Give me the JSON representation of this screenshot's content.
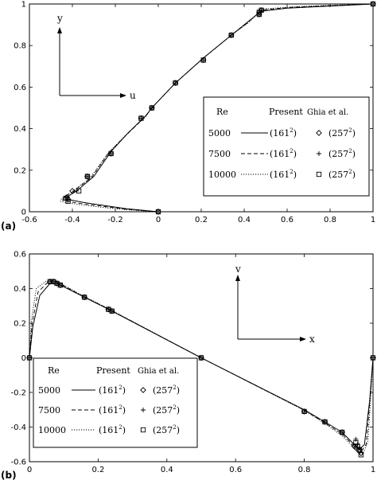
{
  "chart_data": [
    {
      "panel_label": "(a)",
      "type": "line",
      "xlim": [
        -0.6,
        1
      ],
      "ylim": [
        0,
        1
      ],
      "xticks": [
        "-0.6",
        "-0.4",
        "-0.2",
        "0",
        "0.2",
        "0.4",
        "0.6",
        "0.8",
        "1"
      ],
      "yticks": [
        "0",
        "0.2",
        "0.4",
        "0.6",
        "0.8",
        "1"
      ],
      "xtick_values": [
        -0.6,
        -0.4,
        -0.2,
        0,
        0.2,
        0.4,
        0.6,
        0.8,
        1
      ],
      "ytick_values": [
        0,
        0.2,
        0.4,
        0.6,
        0.8,
        1
      ],
      "inset_axes": {
        "vertical": "y",
        "horizontal": "u"
      },
      "legend": {
        "placement": "bottom-right",
        "header": [
          "Re",
          "Present",
          "Ghia et al."
        ],
        "rows": [
          {
            "re": "5000",
            "present": "(161",
            "present_exp": "2",
            "ghia": "(257",
            "ghia_exp": "2",
            "marker": "diamond",
            "dash": "solid"
          },
          {
            "re": "7500",
            "present": "(161",
            "present_exp": "2",
            "ghia": "(257",
            "ghia_exp": "2",
            "marker": "plus",
            "dash": "dashed"
          },
          {
            "re": "10000",
            "present": "(161",
            "present_exp": "2",
            "ghia": "(257",
            "ghia_exp": "2",
            "marker": "square",
            "dash": "dotted"
          }
        ]
      },
      "series": [
        {
          "dash": "solid",
          "points": [
            [
              0,
              0
            ],
            [
              -0.05,
              0.005
            ],
            [
              -0.15,
              0.015
            ],
            [
              -0.25,
              0.03
            ],
            [
              -0.35,
              0.045
            ],
            [
              -0.4,
              0.055
            ],
            [
              -0.43,
              0.06
            ],
            [
              -0.42,
              0.075
            ],
            [
              -0.38,
              0.1
            ],
            [
              -0.3,
              0.17
            ],
            [
              -0.22,
              0.29
            ],
            [
              -0.14,
              0.38
            ],
            [
              -0.06,
              0.46
            ],
            [
              -0.03,
              0.5
            ],
            [
              0.08,
              0.62
            ],
            [
              0.21,
              0.74
            ],
            [
              0.34,
              0.85
            ],
            [
              0.4,
              0.9
            ],
            [
              0.46,
              0.95
            ],
            [
              0.48,
              0.965
            ],
            [
              0.6,
              0.98
            ],
            [
              0.8,
              0.99
            ],
            [
              1.0,
              1.0
            ]
          ]
        },
        {
          "dash": "dashed",
          "points": [
            [
              0,
              0
            ],
            [
              -0.05,
              0.004
            ],
            [
              -0.15,
              0.012
            ],
            [
              -0.25,
              0.025
            ],
            [
              -0.35,
              0.038
            ],
            [
              -0.41,
              0.048
            ],
            [
              -0.445,
              0.055
            ],
            [
              -0.44,
              0.07
            ],
            [
              -0.4,
              0.095
            ],
            [
              -0.31,
              0.165
            ],
            [
              -0.23,
              0.285
            ],
            [
              -0.14,
              0.378
            ],
            [
              -0.06,
              0.458
            ],
            [
              -0.03,
              0.5
            ],
            [
              0.08,
              0.62
            ],
            [
              0.21,
              0.74
            ],
            [
              0.34,
              0.85
            ],
            [
              0.41,
              0.905
            ],
            [
              0.465,
              0.955
            ],
            [
              0.49,
              0.972
            ],
            [
              0.62,
              0.984
            ],
            [
              0.8,
              0.992
            ],
            [
              1.0,
              1.0
            ]
          ]
        },
        {
          "dash": "dotted",
          "points": [
            [
              0,
              0
            ],
            [
              -0.05,
              0.003
            ],
            [
              -0.15,
              0.01
            ],
            [
              -0.25,
              0.02
            ],
            [
              -0.35,
              0.032
            ],
            [
              -0.42,
              0.042
            ],
            [
              -0.455,
              0.05
            ],
            [
              -0.45,
              0.065
            ],
            [
              -0.41,
              0.09
            ],
            [
              -0.32,
              0.16
            ],
            [
              -0.235,
              0.28
            ],
            [
              -0.145,
              0.376
            ],
            [
              -0.06,
              0.456
            ],
            [
              -0.03,
              0.5
            ],
            [
              0.08,
              0.62
            ],
            [
              0.21,
              0.74
            ],
            [
              0.34,
              0.85
            ],
            [
              0.42,
              0.91
            ],
            [
              0.47,
              0.96
            ],
            [
              0.5,
              0.977
            ],
            [
              0.64,
              0.987
            ],
            [
              0.8,
              0.994
            ],
            [
              1.0,
              1.0
            ]
          ]
        }
      ],
      "markers": [
        {
          "marker": "diamond",
          "points": [
            [
              0,
              0
            ],
            [
              -0.42,
              0.06
            ],
            [
              -0.425,
              0.07
            ],
            [
              -0.4,
              0.1
            ],
            [
              -0.33,
              0.17
            ],
            [
              -0.22,
              0.28
            ],
            [
              -0.08,
              0.45
            ],
            [
              -0.03,
              0.5
            ],
            [
              0.08,
              0.62
            ],
            [
              0.21,
              0.73
            ],
            [
              0.34,
              0.85
            ],
            [
              0.47,
              0.95
            ],
            [
              0.47,
              0.96
            ],
            [
              0.48,
              0.97
            ],
            [
              1.0,
              1.0
            ]
          ]
        },
        {
          "marker": "plus",
          "points": [
            [
              0,
              0
            ],
            [
              -0.425,
              0.06
            ],
            [
              -0.43,
              0.07
            ],
            [
              -0.38,
              0.1
            ],
            [
              -0.33,
              0.17
            ],
            [
              -0.22,
              0.28
            ],
            [
              -0.08,
              0.45
            ],
            [
              -0.03,
              0.5
            ],
            [
              0.08,
              0.62
            ],
            [
              0.21,
              0.73
            ],
            [
              0.34,
              0.85
            ],
            [
              0.47,
              0.95
            ],
            [
              0.47,
              0.96
            ],
            [
              0.48,
              0.97
            ],
            [
              1.0,
              1.0
            ]
          ]
        },
        {
          "marker": "square",
          "points": [
            [
              0,
              0
            ],
            [
              -0.42,
              0.05
            ],
            [
              -0.43,
              0.065
            ],
            [
              -0.37,
              0.1
            ],
            [
              -0.33,
              0.17
            ],
            [
              -0.22,
              0.28
            ],
            [
              -0.08,
              0.45
            ],
            [
              -0.03,
              0.5
            ],
            [
              0.08,
              0.62
            ],
            [
              0.21,
              0.73
            ],
            [
              0.34,
              0.85
            ],
            [
              0.47,
              0.95
            ],
            [
              0.47,
              0.96
            ],
            [
              0.48,
              0.97
            ],
            [
              1.0,
              1.0
            ]
          ]
        }
      ]
    },
    {
      "panel_label": "(b)",
      "type": "line",
      "xlim": [
        0,
        1
      ],
      "ylim": [
        -0.6,
        0.6
      ],
      "xticks": [
        "0",
        "0.2",
        "0.4",
        "0.6",
        "0.8",
        "1"
      ],
      "yticks": [
        "-0.6",
        "-0.4",
        "-0.2",
        "0",
        "0.2",
        "0.4",
        "0.6"
      ],
      "xtick_values": [
        0,
        0.2,
        0.4,
        0.6,
        0.8,
        1
      ],
      "ytick_values": [
        -0.6,
        -0.4,
        -0.2,
        0,
        0.2,
        0.4,
        0.6
      ],
      "inset_axes": {
        "vertical": "v",
        "horizontal": "x"
      },
      "legend": {
        "placement": "bottom-left",
        "header": [
          "Re",
          "Present",
          "Ghia et al."
        ],
        "rows": [
          {
            "re": "5000",
            "present": "(161",
            "present_exp": "2",
            "ghia": "(257",
            "ghia_exp": "2",
            "marker": "diamond",
            "dash": "solid"
          },
          {
            "re": "7500",
            "present": "(161",
            "present_exp": "2",
            "ghia": "(257",
            "ghia_exp": "2",
            "marker": "plus",
            "dash": "dashed"
          },
          {
            "re": "10000",
            "present": "(161",
            "present_exp": "2",
            "ghia": "(257",
            "ghia_exp": "2",
            "marker": "square",
            "dash": "dotted"
          }
        ]
      },
      "series": [
        {
          "dash": "solid",
          "points": [
            [
              0,
              0
            ],
            [
              0.01,
              0.18
            ],
            [
              0.03,
              0.36
            ],
            [
              0.06,
              0.43
            ],
            [
              0.08,
              0.43
            ],
            [
              0.1,
              0.41
            ],
            [
              0.15,
              0.36
            ],
            [
              0.23,
              0.28
            ],
            [
              0.5,
              0.0
            ],
            [
              0.8,
              -0.3
            ],
            [
              0.86,
              -0.37
            ],
            [
              0.91,
              -0.43
            ],
            [
              0.94,
              -0.49
            ],
            [
              0.96,
              -0.53
            ],
            [
              0.975,
              -0.5
            ],
            [
              0.99,
              -0.25
            ],
            [
              1.0,
              0
            ]
          ]
        },
        {
          "dash": "dashed",
          "points": [
            [
              0,
              0
            ],
            [
              0.008,
              0.2
            ],
            [
              0.025,
              0.38
            ],
            [
              0.055,
              0.44
            ],
            [
              0.075,
              0.44
            ],
            [
              0.1,
              0.415
            ],
            [
              0.15,
              0.362
            ],
            [
              0.23,
              0.282
            ],
            [
              0.5,
              0.0
            ],
            [
              0.8,
              -0.302
            ],
            [
              0.86,
              -0.375
            ],
            [
              0.91,
              -0.44
            ],
            [
              0.945,
              -0.51
            ],
            [
              0.965,
              -0.54
            ],
            [
              0.98,
              -0.5
            ],
            [
              0.992,
              -0.22
            ],
            [
              1.0,
              0
            ]
          ]
        },
        {
          "dash": "dotted",
          "points": [
            [
              0,
              0
            ],
            [
              0.006,
              0.22
            ],
            [
              0.02,
              0.4
            ],
            [
              0.05,
              0.445
            ],
            [
              0.07,
              0.445
            ],
            [
              0.1,
              0.42
            ],
            [
              0.15,
              0.364
            ],
            [
              0.23,
              0.284
            ],
            [
              0.5,
              0.0
            ],
            [
              0.8,
              -0.304
            ],
            [
              0.86,
              -0.38
            ],
            [
              0.91,
              -0.45
            ],
            [
              0.95,
              -0.53
            ],
            [
              0.97,
              -0.555
            ],
            [
              0.985,
              -0.49
            ],
            [
              0.994,
              -0.2
            ],
            [
              1.0,
              0
            ]
          ]
        }
      ],
      "markers": [
        {
          "marker": "diamond",
          "points": [
            [
              0,
              0
            ],
            [
              0.06,
              0.44
            ],
            [
              0.07,
              0.44
            ],
            [
              0.08,
              0.43
            ],
            [
              0.09,
              0.42
            ],
            [
              0.16,
              0.35
            ],
            [
              0.23,
              0.28
            ],
            [
              0.24,
              0.27
            ],
            [
              0.5,
              0.0
            ],
            [
              0.8,
              -0.31
            ],
            [
              0.86,
              -0.37
            ],
            [
              0.91,
              -0.43
            ],
            [
              0.945,
              -0.51
            ],
            [
              0.95,
              -0.52
            ],
            [
              0.96,
              -0.54
            ],
            [
              0.965,
              -0.55
            ],
            [
              1.0,
              0
            ]
          ]
        },
        {
          "marker": "plus",
          "points": [
            [
              0,
              0
            ],
            [
              0.06,
              0.44
            ],
            [
              0.07,
              0.44
            ],
            [
              0.08,
              0.43
            ],
            [
              0.09,
              0.42
            ],
            [
              0.16,
              0.35
            ],
            [
              0.23,
              0.28
            ],
            [
              0.24,
              0.27
            ],
            [
              0.5,
              0.0
            ],
            [
              0.8,
              -0.31
            ],
            [
              0.86,
              -0.37
            ],
            [
              0.91,
              -0.43
            ],
            [
              0.95,
              -0.47
            ],
            [
              0.955,
              -0.5
            ],
            [
              0.96,
              -0.52
            ],
            [
              0.965,
              -0.53
            ],
            [
              1.0,
              0
            ]
          ]
        },
        {
          "marker": "square",
          "points": [
            [
              0,
              0
            ],
            [
              0.06,
              0.44
            ],
            [
              0.07,
              0.44
            ],
            [
              0.08,
              0.43
            ],
            [
              0.09,
              0.42
            ],
            [
              0.16,
              0.35
            ],
            [
              0.23,
              0.28
            ],
            [
              0.24,
              0.27
            ],
            [
              0.5,
              0.0
            ],
            [
              0.8,
              -0.31
            ],
            [
              0.86,
              -0.37
            ],
            [
              0.91,
              -0.43
            ],
            [
              0.95,
              -0.49
            ],
            [
              0.955,
              -0.51
            ],
            [
              0.96,
              -0.53
            ],
            [
              0.965,
              -0.56
            ],
            [
              1.0,
              0
            ]
          ]
        }
      ]
    }
  ]
}
